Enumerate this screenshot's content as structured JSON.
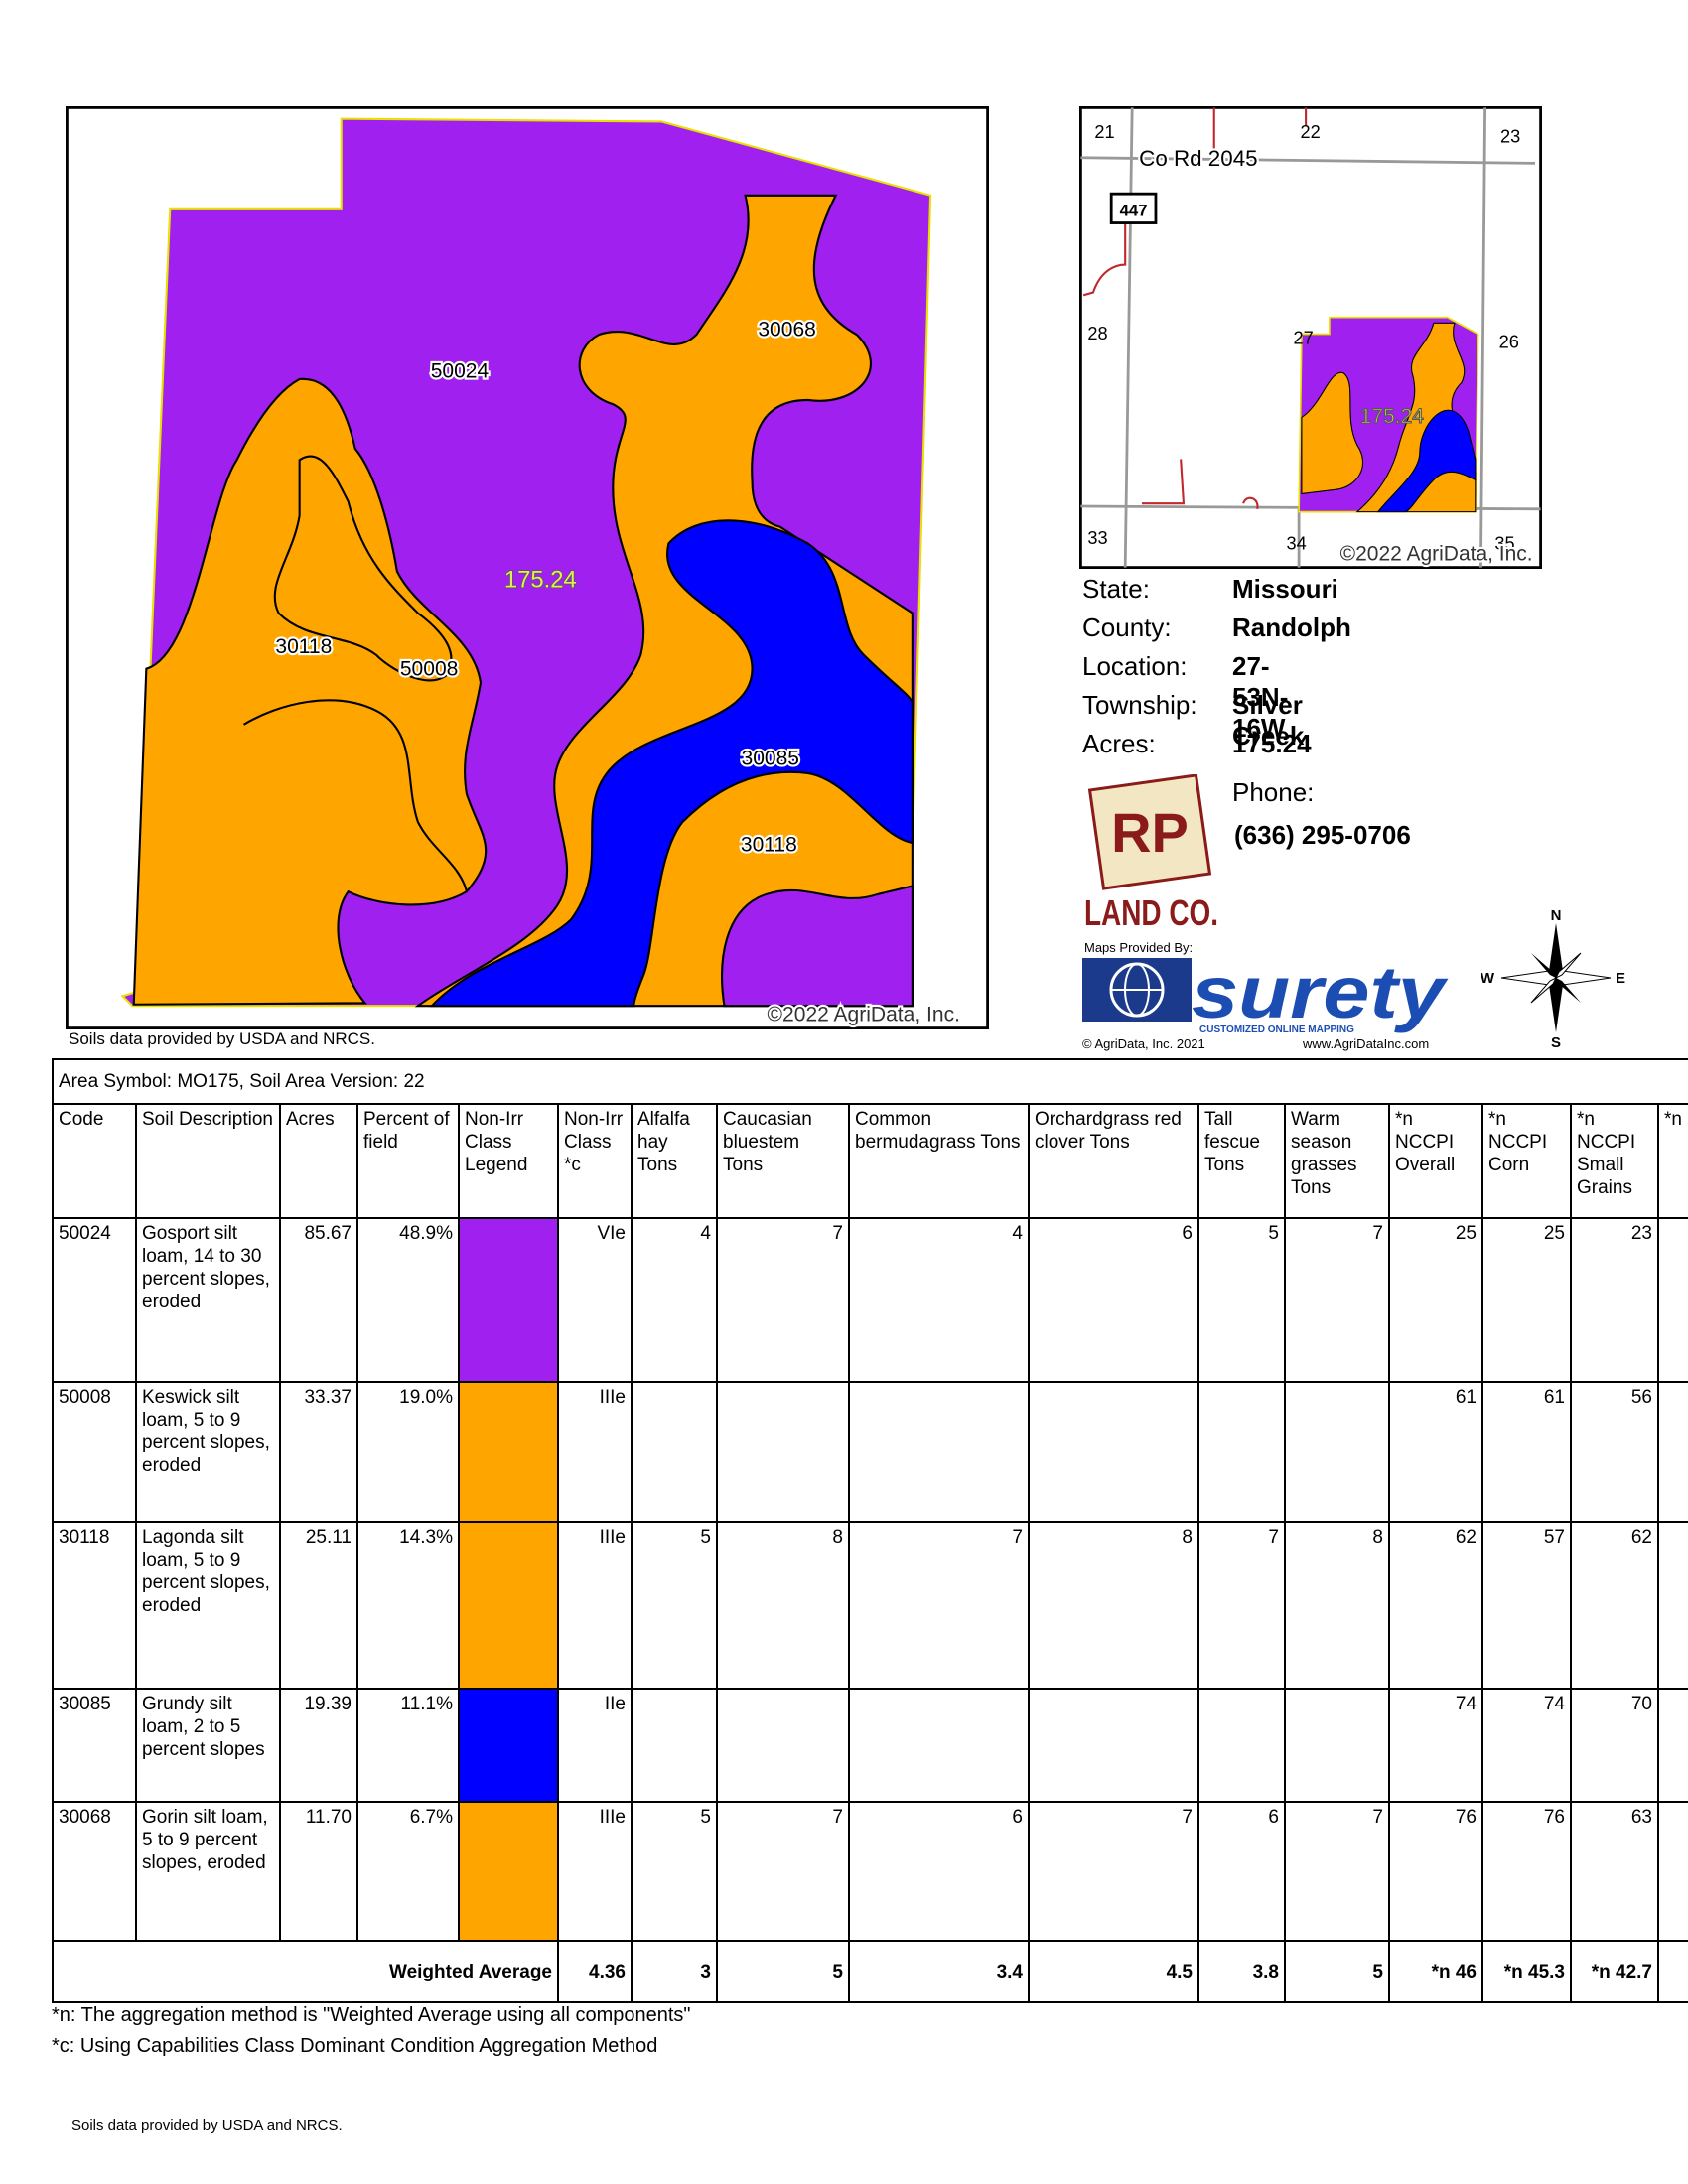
{
  "map": {
    "labels": [
      "50024",
      "30068",
      "175.24",
      "30118",
      "50008",
      "30085",
      "30118"
    ],
    "copyright": "©2022 AgriData, Inc."
  },
  "map_note": "Soils data provided by USDA and NRCS.",
  "inset": {
    "sections": [
      "21",
      "22",
      "23",
      "28",
      "27",
      "26",
      "33",
      "34",
      "35"
    ],
    "road": "Co Rd 2045",
    "highway": "447",
    "acres_label": "175.24",
    "copyright": "©2022 AgriData, Inc."
  },
  "info": {
    "rows": [
      [
        "State:",
        "Missouri"
      ],
      [
        "County:",
        "Randolph"
      ],
      [
        "Location:",
        "27-53N-16W"
      ],
      [
        "Township:",
        "Silver Creek"
      ],
      [
        "Acres:",
        "175.24"
      ]
    ],
    "phone_label": "Phone:",
    "phone": "(636) 295-0706"
  },
  "logos": {
    "rp": "RP",
    "land_co": "LAND CO.",
    "maps_by": "Maps Provided By:",
    "surety": "surety",
    "surety_tag": "CUSTOMIZED ONLINE MAPPING",
    "surety_copy": "© AgriData, Inc. 2021",
    "surety_url": "www.AgriDataInc.com"
  },
  "compass": {
    "n": "N",
    "s": "S",
    "e": "E",
    "w": "W"
  },
  "table": {
    "caption": "Area Symbol: MO175, Soil Area Version: 22",
    "headers": [
      "Code",
      "Soil Description",
      "Acres",
      "Percent of field",
      "Non-Irr Class Legend",
      "Non-Irr Class *c",
      "Alfalfa hay Tons",
      "Caucasian bluestem Tons",
      "Common bermudagrass Tons",
      "Orchardgrass red clover Tons",
      "Tall fescue Tons",
      "Warm season grasses Tons",
      "*n NCCPI Overall",
      "*n NCCPI Corn",
      "*n NCCPI Small Grains",
      "*n So"
    ],
    "rows": [
      [
        "50024",
        "Gosport silt loam, 14 to 30 percent slopes, eroded",
        "85.67",
        "48.9%",
        "VIe",
        "4",
        "7",
        "4",
        "6",
        "5",
        "7",
        "25",
        "25",
        "23"
      ],
      [
        "50008",
        "Keswick silt loam, 5 to 9 percent slopes, eroded",
        "33.37",
        "19.0%",
        "IIIe",
        null,
        null,
        null,
        null,
        null,
        null,
        "61",
        "61",
        "56"
      ],
      [
        "30118",
        "Lagonda silt loam, 5 to 9 percent slopes, eroded",
        "25.11",
        "14.3%",
        "IIIe",
        "5",
        "8",
        "7",
        "8",
        "7",
        "8",
        "62",
        "57",
        "62"
      ],
      [
        "30085",
        "Grundy silt loam, 2 to 5 percent slopes",
        "19.39",
        "11.1%",
        "IIe",
        null,
        null,
        null,
        null,
        null,
        null,
        "74",
        "74",
        "70"
      ],
      [
        "30068",
        "Gorin silt loam, 5 to 9 percent slopes, eroded",
        "11.70",
        "6.7%",
        "IIIe",
        "5",
        "7",
        "6",
        "7",
        "6",
        "7",
        "76",
        "76",
        "63"
      ]
    ],
    "legend_colors": [
      "#a020f0",
      "#ffa500",
      "#ffa500",
      "#0000ff",
      "#ffa500"
    ],
    "footer_label": "Weighted Average",
    "footer": [
      "4.36",
      "3",
      "5",
      "3.4",
      "4.5",
      "3.8",
      "5",
      "*n 46",
      "*n 45.3",
      "*n 42.7"
    ]
  },
  "footnotes": [
    "*n: The aggregation method is \"Weighted Average using all components\"",
    "*c:  Using Capabilities Class Dominant Condition Aggregation Method"
  ],
  "source": "Soils data provided by USDA and NRCS."
}
